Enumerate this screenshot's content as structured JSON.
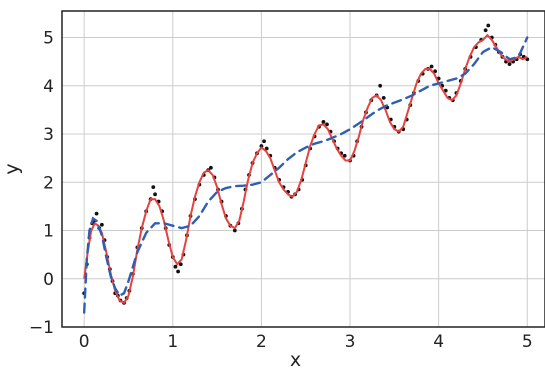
{
  "chart_data": {
    "type": "line",
    "title": "",
    "xlabel": "x",
    "ylabel": "y",
    "xlim": [
      -0.25,
      5.2
    ],
    "ylim": [
      -1,
      5.55
    ],
    "x_ticks": [
      "0",
      "1",
      "2",
      "3",
      "4",
      "5"
    ],
    "y_ticks": [
      "−1",
      "0",
      "1",
      "2",
      "3",
      "4",
      "5"
    ],
    "grid": true,
    "legend": "none",
    "colors": {
      "observations": "#111111",
      "fit": "#e8423f",
      "smooth": "#2f5fb3",
      "grid": "#cccccc",
      "frame": "#222222"
    },
    "series": [
      {
        "kind": "scatter",
        "points": [
          [
            0.0,
            -0.3
          ],
          [
            0.03,
            0.3
          ],
          [
            0.06,
            0.85
          ],
          [
            0.09,
            1.15
          ],
          [
            0.11,
            1.2
          ],
          [
            0.14,
            1.35
          ],
          [
            0.17,
            1.05
          ],
          [
            0.2,
            1.12
          ],
          [
            0.23,
            0.8
          ],
          [
            0.26,
            0.45
          ],
          [
            0.29,
            0.2
          ],
          [
            0.32,
            -0.05
          ],
          [
            0.35,
            -0.3
          ],
          [
            0.38,
            -0.35
          ],
          [
            0.41,
            -0.45
          ],
          [
            0.45,
            -0.5
          ],
          [
            0.48,
            -0.4
          ],
          [
            0.51,
            -0.25
          ],
          [
            0.55,
            0.1
          ],
          [
            0.6,
            0.65
          ],
          [
            0.65,
            1.05
          ],
          [
            0.7,
            1.4
          ],
          [
            0.75,
            1.65
          ],
          [
            0.78,
            1.9
          ],
          [
            0.8,
            1.75
          ],
          [
            0.84,
            1.6
          ],
          [
            0.88,
            1.4
          ],
          [
            0.92,
            1.05
          ],
          [
            0.96,
            0.7
          ],
          [
            1.0,
            0.45
          ],
          [
            1.03,
            0.25
          ],
          [
            1.06,
            0.15
          ],
          [
            1.09,
            0.3
          ],
          [
            1.12,
            0.5
          ],
          [
            1.16,
            0.9
          ],
          [
            1.2,
            1.3
          ],
          [
            1.25,
            1.65
          ],
          [
            1.3,
            1.95
          ],
          [
            1.35,
            2.15
          ],
          [
            1.4,
            2.25
          ],
          [
            1.43,
            2.3
          ],
          [
            1.47,
            2.1
          ],
          [
            1.51,
            1.85
          ],
          [
            1.55,
            1.6
          ],
          [
            1.6,
            1.3
          ],
          [
            1.65,
            1.1
          ],
          [
            1.7,
            1.0
          ],
          [
            1.74,
            1.15
          ],
          [
            1.78,
            1.45
          ],
          [
            1.82,
            1.85
          ],
          [
            1.86,
            2.15
          ],
          [
            1.9,
            2.4
          ],
          [
            1.95,
            2.6
          ],
          [
            2.0,
            2.75
          ],
          [
            2.03,
            2.85
          ],
          [
            2.06,
            2.7
          ],
          [
            2.1,
            2.55
          ],
          [
            2.15,
            2.3
          ],
          [
            2.2,
            2.05
          ],
          [
            2.25,
            1.9
          ],
          [
            2.3,
            1.8
          ],
          [
            2.34,
            1.7
          ],
          [
            2.38,
            1.75
          ],
          [
            2.42,
            1.85
          ],
          [
            2.46,
            2.05
          ],
          [
            2.5,
            2.35
          ],
          [
            2.55,
            2.7
          ],
          [
            2.6,
            2.95
          ],
          [
            2.65,
            3.15
          ],
          [
            2.7,
            3.25
          ],
          [
            2.74,
            3.2
          ],
          [
            2.78,
            3.05
          ],
          [
            2.82,
            2.85
          ],
          [
            2.86,
            2.7
          ],
          [
            2.9,
            2.6
          ],
          [
            2.94,
            2.55
          ],
          [
            3.0,
            2.45
          ],
          [
            3.04,
            2.55
          ],
          [
            3.08,
            2.85
          ],
          [
            3.13,
            3.15
          ],
          [
            3.18,
            3.45
          ],
          [
            3.24,
            3.7
          ],
          [
            3.3,
            3.8
          ],
          [
            3.34,
            4.0
          ],
          [
            3.38,
            3.75
          ],
          [
            3.42,
            3.55
          ],
          [
            3.46,
            3.3
          ],
          [
            3.5,
            3.15
          ],
          [
            3.55,
            3.05
          ],
          [
            3.6,
            3.1
          ],
          [
            3.64,
            3.3
          ],
          [
            3.68,
            3.6
          ],
          [
            3.72,
            3.85
          ],
          [
            3.77,
            4.1
          ],
          [
            3.82,
            4.25
          ],
          [
            3.88,
            4.35
          ],
          [
            3.92,
            4.4
          ],
          [
            3.96,
            4.3
          ],
          [
            4.0,
            4.15
          ],
          [
            4.04,
            4.0
          ],
          [
            4.08,
            3.9
          ],
          [
            4.12,
            3.75
          ],
          [
            4.16,
            3.7
          ],
          [
            4.2,
            3.85
          ],
          [
            4.25,
            4.1
          ],
          [
            4.3,
            4.35
          ],
          [
            4.36,
            4.6
          ],
          [
            4.42,
            4.8
          ],
          [
            4.48,
            4.95
          ],
          [
            4.53,
            5.15
          ],
          [
            4.56,
            5.25
          ],
          [
            4.6,
            5.0
          ],
          [
            4.64,
            4.85
          ],
          [
            4.68,
            4.7
          ],
          [
            4.72,
            4.6
          ],
          [
            4.76,
            4.5
          ],
          [
            4.8,
            4.45
          ],
          [
            4.84,
            4.5
          ],
          [
            4.88,
            4.55
          ],
          [
            4.92,
            4.65
          ],
          [
            4.96,
            4.6
          ],
          [
            5.0,
            4.55
          ]
        ]
      },
      {
        "kind": "line",
        "style": "solid",
        "points": [
          [
            0.0,
            0.0
          ],
          [
            0.04,
            0.55
          ],
          [
            0.08,
            1.0
          ],
          [
            0.12,
            1.15
          ],
          [
            0.16,
            1.1
          ],
          [
            0.2,
            0.95
          ],
          [
            0.25,
            0.55
          ],
          [
            0.3,
            0.1
          ],
          [
            0.35,
            -0.25
          ],
          [
            0.4,
            -0.45
          ],
          [
            0.45,
            -0.5
          ],
          [
            0.5,
            -0.35
          ],
          [
            0.55,
            0.05
          ],
          [
            0.6,
            0.6
          ],
          [
            0.65,
            1.05
          ],
          [
            0.7,
            1.4
          ],
          [
            0.75,
            1.65
          ],
          [
            0.8,
            1.65
          ],
          [
            0.85,
            1.5
          ],
          [
            0.9,
            1.2
          ],
          [
            0.95,
            0.8
          ],
          [
            1.0,
            0.45
          ],
          [
            1.05,
            0.3
          ],
          [
            1.1,
            0.4
          ],
          [
            1.15,
            0.8
          ],
          [
            1.2,
            1.3
          ],
          [
            1.25,
            1.7
          ],
          [
            1.3,
            2.0
          ],
          [
            1.35,
            2.2
          ],
          [
            1.4,
            2.25
          ],
          [
            1.45,
            2.15
          ],
          [
            1.5,
            1.9
          ],
          [
            1.55,
            1.55
          ],
          [
            1.6,
            1.25
          ],
          [
            1.65,
            1.1
          ],
          [
            1.7,
            1.05
          ],
          [
            1.75,
            1.2
          ],
          [
            1.8,
            1.6
          ],
          [
            1.85,
            2.05
          ],
          [
            1.9,
            2.4
          ],
          [
            1.95,
            2.6
          ],
          [
            2.0,
            2.72
          ],
          [
            2.05,
            2.65
          ],
          [
            2.1,
            2.5
          ],
          [
            2.15,
            2.25
          ],
          [
            2.2,
            2.0
          ],
          [
            2.25,
            1.85
          ],
          [
            2.3,
            1.75
          ],
          [
            2.35,
            1.7
          ],
          [
            2.4,
            1.8
          ],
          [
            2.45,
            2.05
          ],
          [
            2.5,
            2.4
          ],
          [
            2.55,
            2.75
          ],
          [
            2.6,
            3.0
          ],
          [
            2.65,
            3.18
          ],
          [
            2.7,
            3.2
          ],
          [
            2.75,
            3.1
          ],
          [
            2.8,
            2.9
          ],
          [
            2.85,
            2.7
          ],
          [
            2.9,
            2.55
          ],
          [
            2.95,
            2.45
          ],
          [
            3.0,
            2.45
          ],
          [
            3.05,
            2.65
          ],
          [
            3.1,
            2.95
          ],
          [
            3.15,
            3.3
          ],
          [
            3.2,
            3.55
          ],
          [
            3.25,
            3.75
          ],
          [
            3.3,
            3.8
          ],
          [
            3.35,
            3.7
          ],
          [
            3.4,
            3.5
          ],
          [
            3.45,
            3.25
          ],
          [
            3.5,
            3.1
          ],
          [
            3.55,
            3.05
          ],
          [
            3.6,
            3.15
          ],
          [
            3.65,
            3.45
          ],
          [
            3.7,
            3.75
          ],
          [
            3.75,
            4.05
          ],
          [
            3.8,
            4.25
          ],
          [
            3.85,
            4.35
          ],
          [
            3.9,
            4.35
          ],
          [
            3.95,
            4.25
          ],
          [
            4.0,
            4.05
          ],
          [
            4.05,
            3.9
          ],
          [
            4.1,
            3.75
          ],
          [
            4.15,
            3.7
          ],
          [
            4.2,
            3.8
          ],
          [
            4.25,
            4.05
          ],
          [
            4.3,
            4.35
          ],
          [
            4.35,
            4.6
          ],
          [
            4.4,
            4.8
          ],
          [
            4.45,
            4.9
          ],
          [
            4.5,
            4.95
          ],
          [
            4.55,
            5.05
          ],
          [
            4.6,
            4.95
          ],
          [
            4.65,
            4.8
          ],
          [
            4.7,
            4.65
          ],
          [
            4.75,
            4.55
          ],
          [
            4.8,
            4.5
          ],
          [
            4.85,
            4.55
          ],
          [
            4.9,
            4.6
          ],
          [
            4.95,
            4.55
          ],
          [
            5.0,
            4.6
          ]
        ]
      },
      {
        "kind": "line",
        "style": "dashed",
        "points": [
          [
            0.0,
            -0.7
          ],
          [
            0.03,
            0.4
          ],
          [
            0.06,
            1.0
          ],
          [
            0.1,
            1.25
          ],
          [
            0.14,
            1.2
          ],
          [
            0.2,
            0.9
          ],
          [
            0.25,
            0.45
          ],
          [
            0.3,
            0.05
          ],
          [
            0.35,
            -0.2
          ],
          [
            0.4,
            -0.35
          ],
          [
            0.45,
            -0.3
          ],
          [
            0.5,
            -0.05
          ],
          [
            0.55,
            0.25
          ],
          [
            0.6,
            0.55
          ],
          [
            0.7,
            0.95
          ],
          [
            0.8,
            1.15
          ],
          [
            0.9,
            1.15
          ],
          [
            1.0,
            1.1
          ],
          [
            1.1,
            1.05
          ],
          [
            1.2,
            1.1
          ],
          [
            1.3,
            1.3
          ],
          [
            1.4,
            1.6
          ],
          [
            1.5,
            1.8
          ],
          [
            1.6,
            1.88
          ],
          [
            1.7,
            1.92
          ],
          [
            1.8,
            1.93
          ],
          [
            1.9,
            1.95
          ],
          [
            2.0,
            2.0
          ],
          [
            2.1,
            2.15
          ],
          [
            2.2,
            2.3
          ],
          [
            2.3,
            2.48
          ],
          [
            2.4,
            2.62
          ],
          [
            2.5,
            2.72
          ],
          [
            2.6,
            2.8
          ],
          [
            2.7,
            2.85
          ],
          [
            2.8,
            2.92
          ],
          [
            2.9,
            3.0
          ],
          [
            3.0,
            3.1
          ],
          [
            3.1,
            3.22
          ],
          [
            3.2,
            3.35
          ],
          [
            3.3,
            3.48
          ],
          [
            3.4,
            3.58
          ],
          [
            3.5,
            3.65
          ],
          [
            3.6,
            3.72
          ],
          [
            3.7,
            3.8
          ],
          [
            3.8,
            3.9
          ],
          [
            3.9,
            4.0
          ],
          [
            4.0,
            4.05
          ],
          [
            4.1,
            4.1
          ],
          [
            4.2,
            4.15
          ],
          [
            4.3,
            4.25
          ],
          [
            4.4,
            4.45
          ],
          [
            4.5,
            4.7
          ],
          [
            4.6,
            4.8
          ],
          [
            4.7,
            4.7
          ],
          [
            4.8,
            4.55
          ],
          [
            4.9,
            4.6
          ],
          [
            5.0,
            5.0
          ]
        ]
      }
    ]
  }
}
